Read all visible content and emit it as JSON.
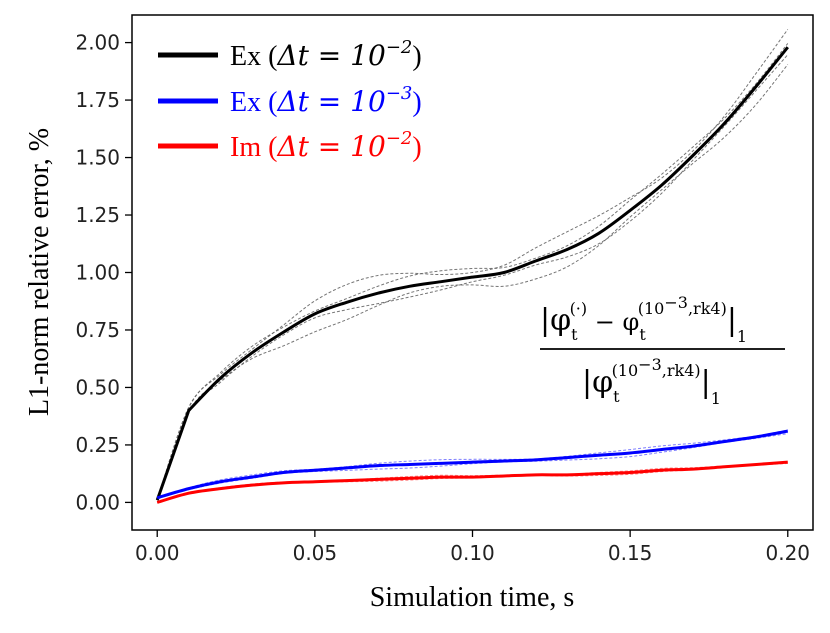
{
  "chart_data": {
    "type": "line",
    "xlabel": "Simulation time, s",
    "ylabel": "L1-norm relative error, %",
    "xlim": [
      -0.008,
      0.208
    ],
    "ylim": [
      -0.12,
      2.12
    ],
    "xticks": [
      0.0,
      0.05,
      0.1,
      0.15,
      0.2
    ],
    "xtick_labels": [
      "0.00",
      "0.05",
      "0.10",
      "0.15",
      "0.20"
    ],
    "yticks": [
      0.0,
      0.25,
      0.5,
      0.75,
      1.0,
      1.25,
      1.5,
      1.75,
      2.0
    ],
    "ytick_labels": [
      "0.00",
      "0.25",
      "0.50",
      "0.75",
      "1.00",
      "1.25",
      "1.50",
      "1.75",
      "2.00"
    ],
    "grid": false,
    "legend_position": "top-left",
    "x": [
      0.0,
      0.01,
      0.02,
      0.03,
      0.04,
      0.05,
      0.06,
      0.07,
      0.08,
      0.09,
      0.1,
      0.11,
      0.12,
      0.13,
      0.14,
      0.15,
      0.16,
      0.17,
      0.18,
      0.19,
      0.2
    ],
    "series": [
      {
        "name": "Ex (Δt = 10⁻²)",
        "legend_prefix": "Ex (",
        "legend_math": "Δt = 10",
        "legend_exp": "−2",
        "legend_suffix": ")",
        "color": "#000000",
        "values": [
          0.01,
          0.4,
          0.54,
          0.65,
          0.74,
          0.82,
          0.87,
          0.91,
          0.94,
          0.96,
          0.98,
          1.0,
          1.05,
          1.1,
          1.17,
          1.27,
          1.38,
          1.51,
          1.65,
          1.81,
          1.98
        ],
        "variants_offset": [
          0.03,
          -0.03,
          0.05,
          -0.05
        ]
      },
      {
        "name": "Ex (Δt = 10⁻³)",
        "legend_prefix": "Ex (",
        "legend_math": "Δt = 10",
        "legend_exp": "−3",
        "legend_suffix": ")",
        "color": "#0000ff",
        "values": [
          0.02,
          0.06,
          0.09,
          0.11,
          0.13,
          0.14,
          0.15,
          0.16,
          0.165,
          0.17,
          0.175,
          0.18,
          0.185,
          0.195,
          0.205,
          0.215,
          0.23,
          0.245,
          0.265,
          0.285,
          0.31
        ],
        "variants_offset": [
          0.01,
          -0.01
        ]
      },
      {
        "name": "Im (Δt = 10⁻²)",
        "legend_prefix": "Im (",
        "legend_math": "Δt = 10",
        "legend_exp": "−2",
        "legend_suffix": ")",
        "color": "#ff0000",
        "values": [
          0.0,
          0.04,
          0.06,
          0.075,
          0.085,
          0.09,
          0.095,
          0.1,
          0.105,
          0.11,
          0.11,
          0.115,
          0.12,
          0.12,
          0.125,
          0.13,
          0.14,
          0.145,
          0.155,
          0.165,
          0.175
        ],
        "variants_offset": [
          0.005,
          -0.005
        ]
      }
    ],
    "annotation": {
      "num_open": "|φ",
      "num_sub": "t",
      "num_sup1": "(·)",
      "num_mid": " − φ",
      "num_sup2": "(10",
      "num_sup2_exp": "−3",
      "num_sup2_rest": ",rk4)",
      "num_close": "|",
      "norm_sub": "1",
      "den_open": "|φ",
      "den_sub": "t",
      "den_sup": "(10",
      "den_sup_exp": "−3",
      "den_sup_rest": ",rk4)",
      "den_close": "|",
      "den_norm_sub": "1"
    }
  }
}
